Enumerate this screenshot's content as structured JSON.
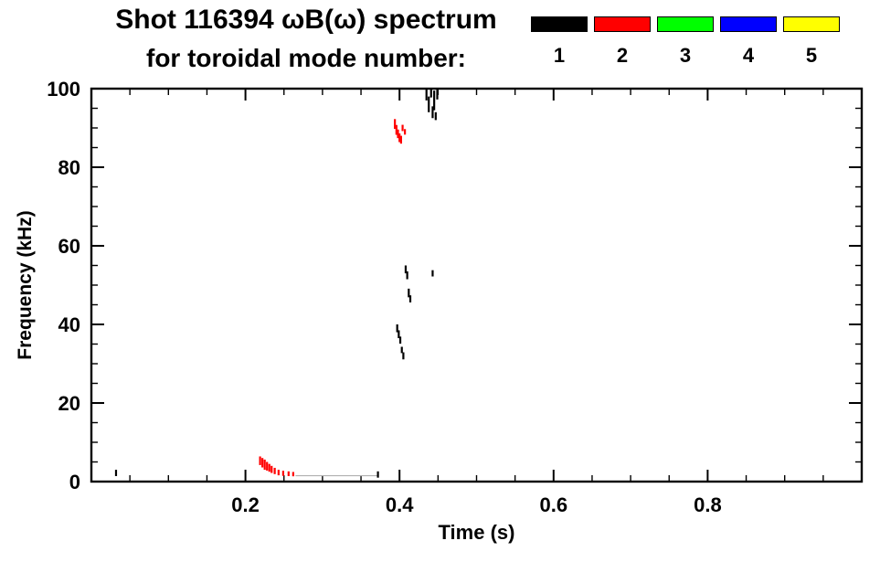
{
  "chart_data": {
    "type": "scatter",
    "title": "Shot 116394 ωB(ω) spectrum",
    "subtitle": "for toroidal mode number:",
    "xlabel": "Time (s)",
    "ylabel": "Frequency (kHz)",
    "xlim": [
      0.0,
      1.0
    ],
    "ylim": [
      0,
      100
    ],
    "xticks": [
      {
        "value": 0.2,
        "label": "0.2"
      },
      {
        "value": 0.4,
        "label": "0.4"
      },
      {
        "value": 0.6,
        "label": "0.6"
      },
      {
        "value": 0.8,
        "label": "0.8"
      }
    ],
    "yticks": [
      {
        "value": 0,
        "label": "0"
      },
      {
        "value": 20,
        "label": "20"
      },
      {
        "value": 40,
        "label": "40"
      },
      {
        "value": 60,
        "label": "60"
      },
      {
        "value": 80,
        "label": "80"
      },
      {
        "value": 100,
        "label": "100"
      }
    ],
    "x_minor_step": 0.05,
    "y_minor_step": 5,
    "grid": false,
    "legend_position": "top-right",
    "background": "#ffffff",
    "axis_color": "#000000",
    "legend": [
      {
        "label": "1",
        "color": "#000000"
      },
      {
        "label": "2",
        "color": "#ff0000"
      },
      {
        "label": "3",
        "color": "#00ff00"
      },
      {
        "label": "4",
        "color": "#0000ff"
      },
      {
        "label": "5",
        "color": "#ffff00"
      }
    ],
    "series": [
      {
        "name": "n=1",
        "color": "#000000",
        "points_format": [
          "time_s",
          "freq_khz",
          "freq_extent_khz"
        ],
        "points": [
          [
            0.032,
            2.2,
            1.6
          ],
          [
            0.435,
            98.5,
            3.0
          ],
          [
            0.438,
            96.0,
            4.0
          ],
          [
            0.441,
            99.0,
            2.5
          ],
          [
            0.443,
            94.0,
            3.0
          ],
          [
            0.445,
            97.0,
            5.0
          ],
          [
            0.447,
            93.0,
            2.0
          ],
          [
            0.449,
            98.5,
            2.5
          ],
          [
            0.408,
            54.0,
            2.0
          ],
          [
            0.41,
            52.5,
            2.0
          ],
          [
            0.443,
            53.0,
            1.6
          ],
          [
            0.412,
            48.0,
            2.2
          ],
          [
            0.414,
            46.5,
            1.8
          ],
          [
            0.397,
            39.0,
            2.0
          ],
          [
            0.399,
            37.5,
            2.0
          ],
          [
            0.401,
            36.0,
            1.8
          ],
          [
            0.403,
            33.5,
            1.6
          ],
          [
            0.405,
            32.0,
            1.8
          ],
          [
            0.372,
            1.8,
            1.6
          ]
        ]
      },
      {
        "name": "n=2",
        "color": "#ff0000",
        "points_format": [
          "time_s",
          "freq_khz",
          "freq_extent_khz"
        ],
        "points": [
          [
            0.394,
            91.0,
            2.5
          ],
          [
            0.396,
            89.5,
            2.5
          ],
          [
            0.398,
            88.5,
            2.2
          ],
          [
            0.4,
            87.5,
            2.2
          ],
          [
            0.402,
            87.0,
            2.0
          ],
          [
            0.404,
            90.0,
            1.6
          ],
          [
            0.407,
            89.0,
            1.4
          ],
          [
            0.219,
            5.3,
            2.2
          ],
          [
            0.222,
            4.8,
            2.4
          ],
          [
            0.225,
            4.3,
            2.6
          ],
          [
            0.228,
            3.9,
            2.2
          ],
          [
            0.231,
            3.5,
            2.0
          ],
          [
            0.234,
            3.1,
            1.8
          ],
          [
            0.238,
            2.7,
            1.6
          ],
          [
            0.243,
            2.3,
            1.4
          ],
          [
            0.249,
            2.1,
            1.3
          ],
          [
            0.256,
            2.0,
            1.2
          ],
          [
            0.262,
            1.9,
            1.1
          ]
        ]
      },
      {
        "name": "n=3",
        "color": "#00ff00",
        "points": []
      },
      {
        "name": "n=4",
        "color": "#0000ff",
        "points": []
      },
      {
        "name": "n=5",
        "color": "#ffff00",
        "points": []
      }
    ],
    "segments": [
      {
        "t1": 0.265,
        "t2": 0.372,
        "f": 1.5,
        "color": "#b0b0b0",
        "width": 1.2
      }
    ]
  }
}
